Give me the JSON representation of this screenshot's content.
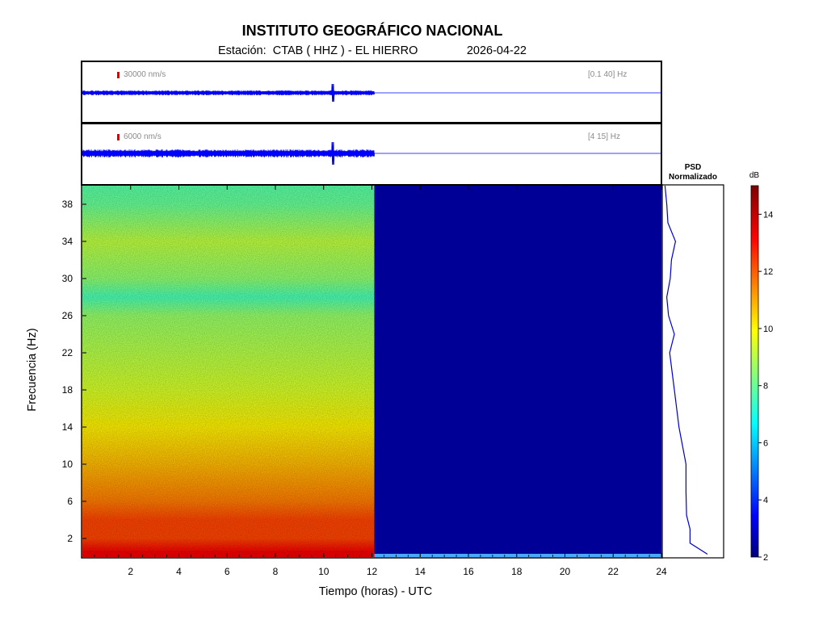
{
  "header": {
    "title": "INSTITUTO GEOGRÁFICO NACIONAL",
    "station_label": "Estación:",
    "station": "CTAB ( HHZ ) - EL HIERRO",
    "date": "2026-04-22"
  },
  "traces": [
    {
      "scale_label": "30000 nm/s",
      "band_label": "[0.1 40] Hz",
      "color": "#0000ff"
    },
    {
      "scale_label": "6000 nm/s",
      "band_label": "[4 15] Hz",
      "color": "#0000ff"
    }
  ],
  "psd": {
    "title_line1": "PSD",
    "title_line2": "Normalizado"
  },
  "colorbar": {
    "unit": "dB",
    "range": [
      2,
      15
    ],
    "ticks": [
      2,
      4,
      6,
      8,
      10,
      12,
      14
    ],
    "colormap": "jet"
  },
  "chart_data": {
    "type": "heatmap",
    "xlabel": "Tiempo (horas) - UTC",
    "ylabel": "Frecuencia  (Hz)",
    "xlim": [
      0,
      24
    ],
    "ylim": [
      0,
      40
    ],
    "x_ticks": [
      2,
      4,
      6,
      8,
      10,
      12,
      14,
      16,
      18,
      20,
      22,
      24
    ],
    "y_ticks": [
      2,
      6,
      10,
      14,
      18,
      22,
      26,
      30,
      34,
      38
    ],
    "data_end_hour": 12.1,
    "spectrum_db_by_frequency": [
      {
        "freq": 0.5,
        "db": 13.5
      },
      {
        "freq": 2,
        "db": 12.5
      },
      {
        "freq": 4,
        "db": 12.5
      },
      {
        "freq": 6,
        "db": 11.8
      },
      {
        "freq": 10,
        "db": 11
      },
      {
        "freq": 14,
        "db": 10.3
      },
      {
        "freq": 18,
        "db": 9.6
      },
      {
        "freq": 22,
        "db": 9.2
      },
      {
        "freq": 26,
        "db": 8.8
      },
      {
        "freq": 28,
        "db": 7.8
      },
      {
        "freq": 30,
        "db": 8.7
      },
      {
        "freq": 34,
        "db": 9.3
      },
      {
        "freq": 38,
        "db": 8.2
      },
      {
        "freq": 40,
        "db": 8.0
      }
    ],
    "no_data_db": 2.3,
    "psd_normalized": [
      {
        "freq": 0.3,
        "value": 0.75
      },
      {
        "freq": 1.5,
        "value": 0.45
      },
      {
        "freq": 3,
        "value": 0.45
      },
      {
        "freq": 4.5,
        "value": 0.39
      },
      {
        "freq": 7,
        "value": 0.38
      },
      {
        "freq": 10,
        "value": 0.38
      },
      {
        "freq": 14,
        "value": 0.26
      },
      {
        "freq": 18,
        "value": 0.18
      },
      {
        "freq": 22,
        "value": 0.1
      },
      {
        "freq": 24,
        "value": 0.18
      },
      {
        "freq": 26,
        "value": 0.08
      },
      {
        "freq": 28,
        "value": 0.05
      },
      {
        "freq": 30,
        "value": 0.11
      },
      {
        "freq": 32,
        "value": 0.13
      },
      {
        "freq": 34,
        "value": 0.2
      },
      {
        "freq": 36,
        "value": 0.07
      },
      {
        "freq": 38,
        "value": 0.05
      },
      {
        "freq": 40,
        "value": 0.02
      }
    ]
  }
}
